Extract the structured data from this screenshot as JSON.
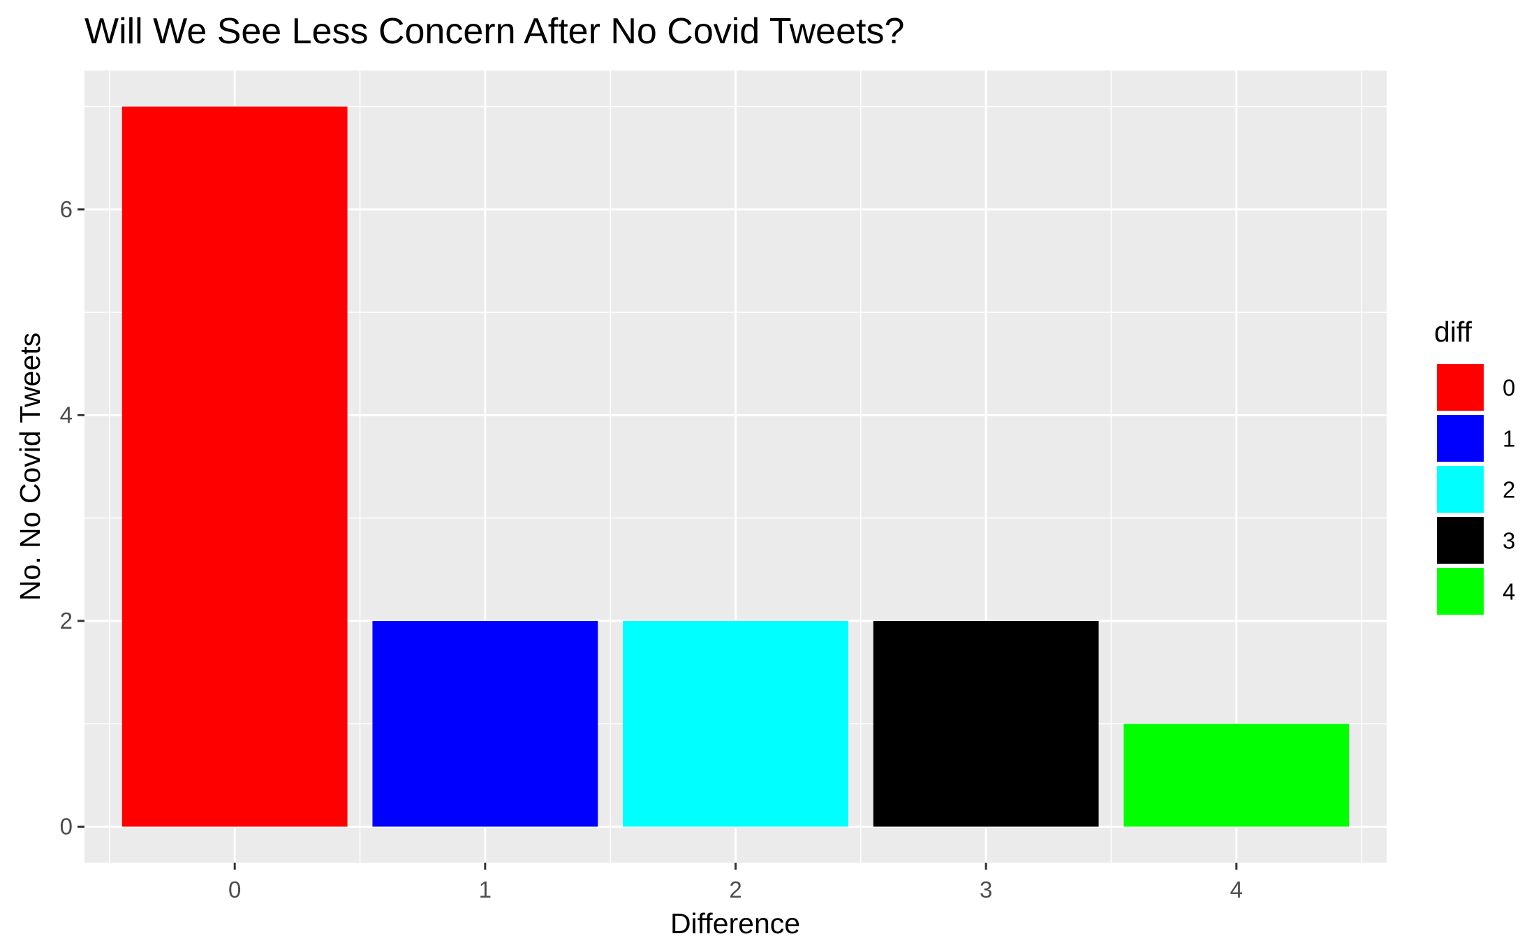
{
  "chart_data": {
    "type": "bar",
    "title": "Will We See Less Concern After No Covid Tweets?",
    "xlabel": "Difference",
    "ylabel": "No. No Covid Tweets",
    "categories": [
      "0",
      "1",
      "2",
      "3",
      "4"
    ],
    "values": [
      7,
      2,
      2,
      2,
      1
    ],
    "colors": [
      "#ff0000",
      "#0000ff",
      "#00ffff",
      "#000000",
      "#00ff00"
    ],
    "ylim": [
      -0.35,
      7.35
    ],
    "yticks": [
      0,
      2,
      4,
      6
    ],
    "yticks_minor": [
      1,
      3,
      5,
      7
    ],
    "grid": true,
    "panel_background": "#ebebeb",
    "grid_color": "#ffffff",
    "legend": {
      "title": "diff",
      "position": "right",
      "entries": [
        "0",
        "1",
        "2",
        "3",
        "4"
      ]
    }
  }
}
